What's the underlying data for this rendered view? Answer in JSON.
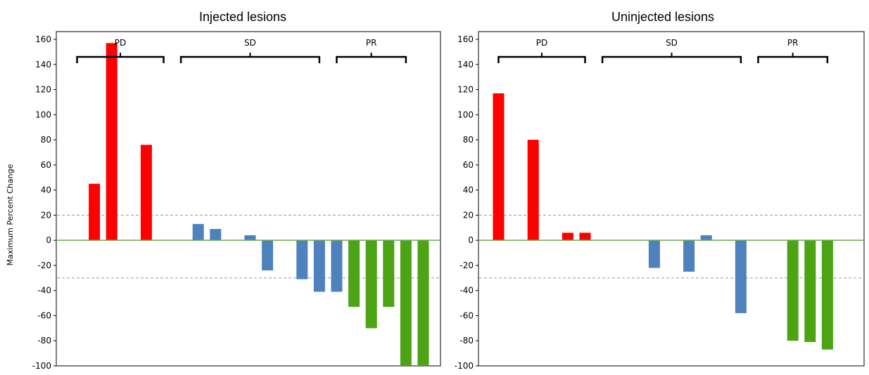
{
  "colors": {
    "pd": "#ff0000",
    "sd": "#4f81bd",
    "pr": "#4ca314",
    "zero_line": "#6aa84f",
    "threshold_line": "#999999"
  },
  "chart_data": [
    {
      "type": "bar",
      "title": "Injected lesions",
      "ylabel": "Maximum Percent Change",
      "ylim": [
        -100,
        160
      ],
      "yticks": [
        "160",
        "140",
        "120",
        "100",
        "80",
        "60",
        "40",
        "20",
        "0",
        "-20",
        "-40",
        "-60",
        "-80",
        "-100"
      ],
      "thresholds": [
        20,
        -30
      ],
      "groups": [
        {
          "label": "PD",
          "from_slot": 0,
          "to_slot": 5
        },
        {
          "label": "SD",
          "from_slot": 6,
          "to_slot": 14
        },
        {
          "label": "PR",
          "from_slot": 15,
          "to_slot": 19
        }
      ],
      "bars": [
        {
          "slot": 1,
          "value": 45,
          "group": "pd"
        },
        {
          "slot": 2,
          "value": 157,
          "group": "pd"
        },
        {
          "slot": 4,
          "value": 76,
          "group": "pd"
        },
        {
          "slot": 7,
          "value": 13,
          "group": "sd"
        },
        {
          "slot": 8,
          "value": 9,
          "group": "sd"
        },
        {
          "slot": 10,
          "value": 4,
          "group": "sd"
        },
        {
          "slot": 11,
          "value": -24,
          "group": "sd"
        },
        {
          "slot": 13,
          "value": -31,
          "group": "sd"
        },
        {
          "slot": 14,
          "value": -41,
          "group": "sd"
        },
        {
          "slot": 15,
          "value": -41,
          "group": "sd"
        },
        {
          "slot": 16,
          "value": -53,
          "group": "pr"
        },
        {
          "slot": 17,
          "value": -70,
          "group": "pr"
        },
        {
          "slot": 18,
          "value": -53,
          "group": "pr"
        },
        {
          "slot": 19,
          "value": -100,
          "group": "pr"
        },
        {
          "slot": 20,
          "value": -100,
          "group": "pr"
        }
      ]
    },
    {
      "type": "bar",
      "title": "Uninjected lesions",
      "ylim": [
        -100,
        160
      ],
      "yticks": [
        "160",
        "140",
        "120",
        "100",
        "80",
        "60",
        "40",
        "20",
        "0",
        "-20",
        "-40",
        "-60",
        "-80",
        "-100"
      ],
      "thresholds": [
        20,
        -30
      ],
      "groups": [
        {
          "label": "PD",
          "from_slot": 0,
          "to_slot": 5
        },
        {
          "label": "SD",
          "from_slot": 6,
          "to_slot": 14
        },
        {
          "label": "PR",
          "from_slot": 15,
          "to_slot": 19
        }
      ],
      "bars": [
        {
          "slot": 0,
          "value": 117,
          "group": "pd"
        },
        {
          "slot": 2,
          "value": 80,
          "group": "pd"
        },
        {
          "slot": 4,
          "value": 6,
          "group": "pd"
        },
        {
          "slot": 5,
          "value": 6,
          "group": "pd"
        },
        {
          "slot": 9,
          "value": -22,
          "group": "sd"
        },
        {
          "slot": 11,
          "value": -25,
          "group": "sd"
        },
        {
          "slot": 12,
          "value": 4,
          "group": "sd"
        },
        {
          "slot": 14,
          "value": -58,
          "group": "sd"
        },
        {
          "slot": 17,
          "value": -80,
          "group": "pr"
        },
        {
          "slot": 18,
          "value": -81,
          "group": "pr"
        },
        {
          "slot": 19,
          "value": -87,
          "group": "pr"
        }
      ]
    }
  ]
}
